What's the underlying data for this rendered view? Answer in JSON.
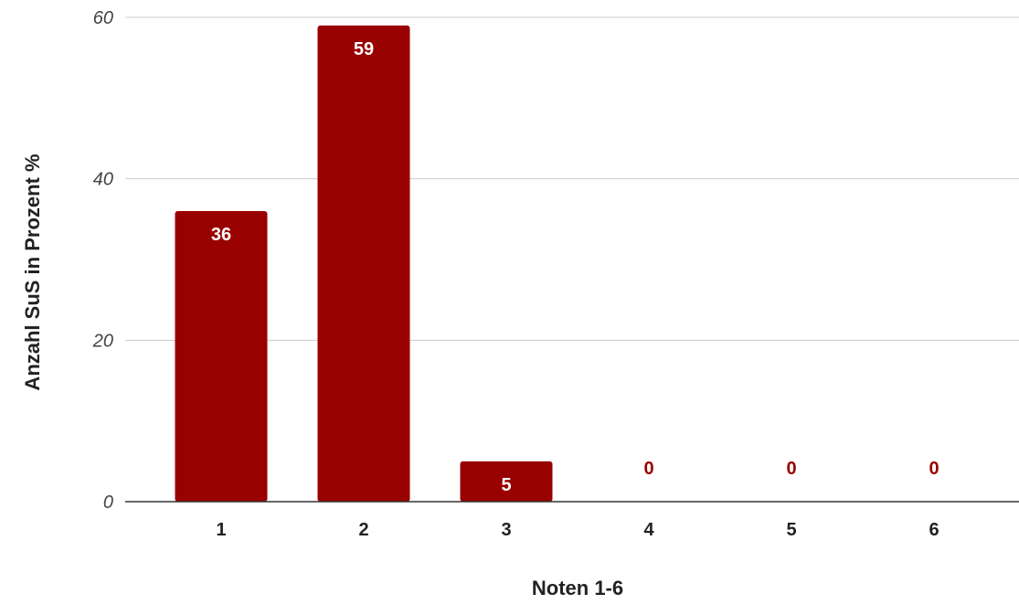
{
  "chart_data": {
    "type": "bar",
    "title": "",
    "xlabel": "Noten 1-6",
    "ylabel": "Anzahl SuS in Prozent %",
    "categories": [
      "1",
      "2",
      "3",
      "4",
      "5",
      "6"
    ],
    "values": [
      36,
      59,
      5,
      0,
      0,
      0
    ],
    "data_labels": [
      "36",
      "59",
      "5",
      "0",
      "0",
      "0"
    ],
    "ylim": [
      0,
      60
    ],
    "yticks": [
      0,
      20,
      40,
      60
    ],
    "ytick_labels": [
      "0",
      "20",
      "40",
      "60"
    ],
    "grid": true,
    "legend": "none",
    "colors": {
      "bar": "#990000",
      "label_inside": "#ffffff",
      "label_outside": "#990000",
      "grid": "#cccccc",
      "axis": "#333333"
    }
  }
}
